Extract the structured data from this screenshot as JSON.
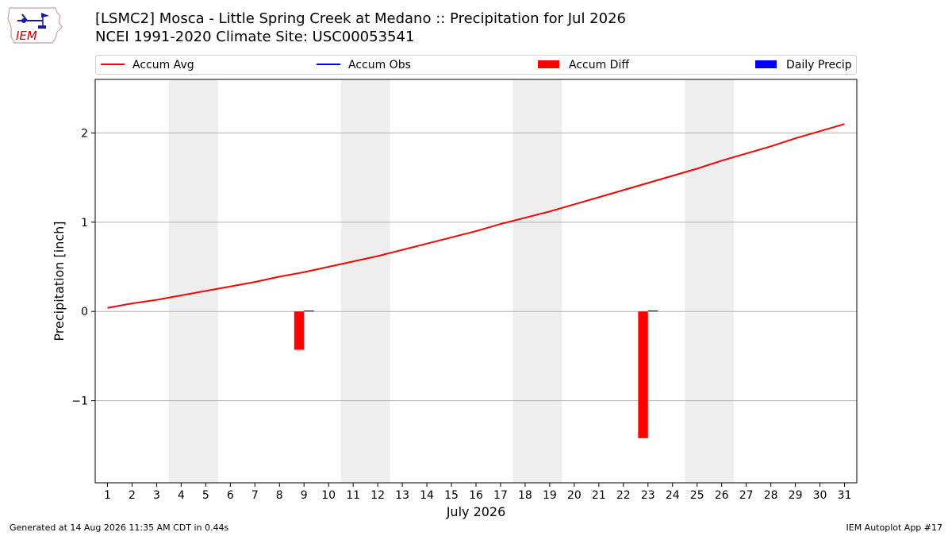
{
  "title": {
    "line1": "[LSMC2] Mosca - Little Spring Creek at Medano :: Precipitation for Jul 2026",
    "line2": "NCEI 1991-2020 Climate Site: USC00053541"
  },
  "logo": {
    "text": "IEM",
    "icon": "iem-iowa-logo"
  },
  "legend": {
    "items": [
      {
        "label": "Accum Avg",
        "kind": "line",
        "color": "#ff0000"
      },
      {
        "label": "Accum Obs",
        "kind": "line",
        "color": "#0000ff"
      },
      {
        "label": "Accum Diff",
        "kind": "patch",
        "color": "#ff0000"
      },
      {
        "label": "Daily Precip",
        "kind": "patch",
        "color": "#0000ff"
      }
    ]
  },
  "footer": {
    "left": "Generated at 14 Aug 2026 11:35 AM CDT in 0.44s",
    "right": "IEM Autoplot App #17"
  },
  "chart_data": {
    "type": "line",
    "xlabel": "July 2026",
    "ylabel": "Precipitation [inch]",
    "xlim": [
      0.5,
      31.5
    ],
    "ylim": [
      -1.92,
      2.6
    ],
    "x": [
      1,
      2,
      3,
      4,
      5,
      6,
      7,
      8,
      9,
      10,
      11,
      12,
      13,
      14,
      15,
      16,
      17,
      18,
      19,
      20,
      21,
      22,
      23,
      24,
      25,
      26,
      27,
      28,
      29,
      30,
      31
    ],
    "xticks": [
      "1",
      "2",
      "3",
      "4",
      "5",
      "6",
      "7",
      "8",
      "9",
      "10",
      "11",
      "12",
      "13",
      "14",
      "15",
      "16",
      "17",
      "18",
      "19",
      "20",
      "21",
      "22",
      "23",
      "24",
      "25",
      "26",
      "27",
      "28",
      "29",
      "30",
      "31"
    ],
    "yticks": [
      2,
      1,
      0,
      -1
    ],
    "ytick_labels": [
      "2",
      "1",
      "0",
      "−1"
    ],
    "grid": true,
    "weekend_shading": [
      [
        3.5,
        5.5
      ],
      [
        10.5,
        12.5
      ],
      [
        17.5,
        19.5
      ],
      [
        24.5,
        26.5
      ]
    ],
    "series": [
      {
        "name": "Accum Avg",
        "kind": "line",
        "color": "#ff0000",
        "values": [
          0.04,
          0.09,
          0.13,
          0.18,
          0.23,
          0.28,
          0.33,
          0.39,
          0.44,
          0.5,
          0.56,
          0.62,
          0.69,
          0.76,
          0.83,
          0.9,
          0.98,
          1.05,
          1.12,
          1.2,
          1.28,
          1.36,
          1.44,
          1.52,
          1.6,
          1.69,
          1.77,
          1.85,
          1.94,
          2.02,
          2.1
        ]
      },
      {
        "name": "Accum Diff",
        "kind": "bar",
        "color": "#ff0000",
        "points": [
          {
            "x": 9,
            "value": -0.43
          },
          {
            "x": 23,
            "value": -1.42
          }
        ]
      },
      {
        "name": "Daily Precip",
        "kind": "bar",
        "color": "#0000ff",
        "points": [
          {
            "x": 9,
            "value": 0.01
          },
          {
            "x": 23,
            "value": 0.01
          }
        ]
      }
    ]
  }
}
